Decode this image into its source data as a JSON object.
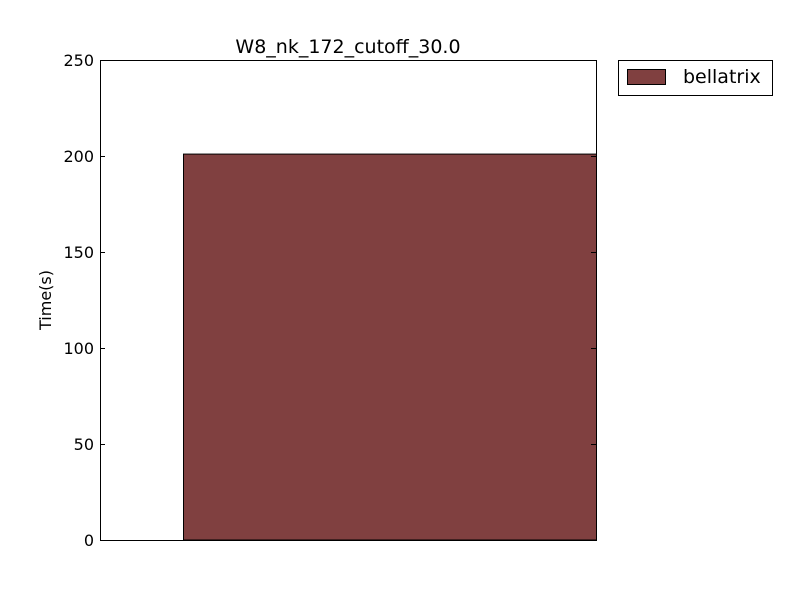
{
  "chart_data": {
    "type": "bar",
    "title": "W8_nk_172_cutoff_30.0",
    "xlabel": "",
    "ylabel": "Time(s)",
    "ylim": [
      0,
      250
    ],
    "yticks": [
      0,
      50,
      100,
      150,
      200,
      250
    ],
    "grid": false,
    "legend_position": "outside-top-right",
    "series": [
      {
        "name": "bellatrix",
        "color": "#804040",
        "values": [
          201
        ]
      }
    ]
  }
}
